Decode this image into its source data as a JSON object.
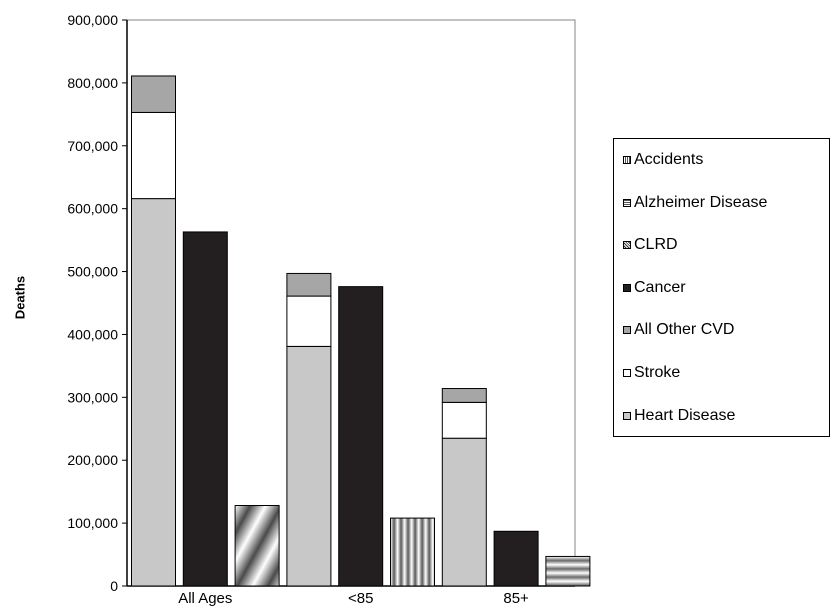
{
  "chart_data": {
    "type": "bar",
    "stacked": true,
    "ylabel": "Deaths",
    "xlabel": "",
    "ylim": [
      0,
      900000
    ],
    "yticks": [
      0,
      100000,
      200000,
      300000,
      400000,
      500000,
      600000,
      700000,
      800000,
      900000
    ],
    "ytick_labels": [
      "0",
      "100,000",
      "200,000",
      "300,000",
      "400,000",
      "500,000",
      "600,000",
      "700,000",
      "800,000",
      "900,000"
    ],
    "groups": [
      "All Ages",
      "<85",
      "85+"
    ],
    "grid": false,
    "legend_position": "right",
    "legend": [
      {
        "name": "Accidents",
        "pattern": "vertical-stripes"
      },
      {
        "name": "Alzheimer Disease",
        "pattern": "horizontal-stripes"
      },
      {
        "name": "CLRD",
        "pattern": "diagonal-stripes"
      },
      {
        "name": "Cancer",
        "color": "#231f20"
      },
      {
        "name": "All Other CVD",
        "color": "#a6a6a6"
      },
      {
        "name": "Stroke",
        "color": "#ffffff"
      },
      {
        "name": "Heart Disease",
        "color": "#c8c8c8"
      }
    ],
    "bars": [
      {
        "group": "All Ages",
        "kind": "cvd",
        "segments": [
          {
            "series": "Heart Disease",
            "value": 616000
          },
          {
            "series": "Stroke",
            "value": 137000
          },
          {
            "series": "All Other CVD",
            "value": 58000
          }
        ]
      },
      {
        "group": "All Ages",
        "kind": "single",
        "segments": [
          {
            "series": "Cancer",
            "value": 563000
          }
        ]
      },
      {
        "group": "All Ages",
        "kind": "single",
        "segments": [
          {
            "series": "CLRD",
            "value": 128000
          }
        ]
      },
      {
        "group": "<85",
        "kind": "cvd",
        "segments": [
          {
            "series": "Heart Disease",
            "value": 381000
          },
          {
            "series": "Stroke",
            "value": 80000
          },
          {
            "series": "All Other CVD",
            "value": 36000
          }
        ]
      },
      {
        "group": "<85",
        "kind": "single",
        "segments": [
          {
            "series": "Cancer",
            "value": 476000
          }
        ]
      },
      {
        "group": "<85",
        "kind": "single",
        "segments": [
          {
            "series": "Accidents",
            "value": 108000
          }
        ]
      },
      {
        "group": "85+",
        "kind": "cvd",
        "segments": [
          {
            "series": "Heart Disease",
            "value": 235000
          },
          {
            "series": "Stroke",
            "value": 57000
          },
          {
            "series": "All Other CVD",
            "value": 22000
          }
        ]
      },
      {
        "group": "85+",
        "kind": "single",
        "segments": [
          {
            "series": "Cancer",
            "value": 87000
          }
        ]
      },
      {
        "group": "85+",
        "kind": "single",
        "segments": [
          {
            "series": "Alzheimer Disease",
            "value": 47000
          }
        ]
      }
    ]
  }
}
